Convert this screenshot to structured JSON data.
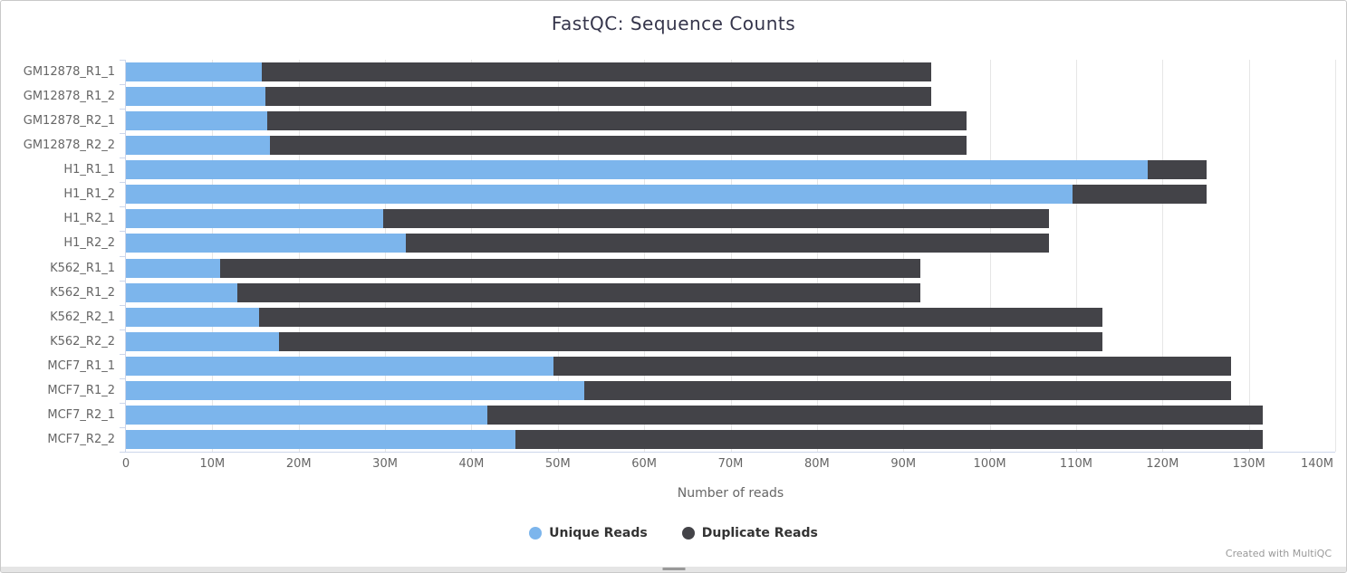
{
  "header": {
    "title": "FastQC: Sequence Counts"
  },
  "chart_data": {
    "type": "bar",
    "orientation": "horizontal_stacked",
    "title": "FastQC: Sequence Counts",
    "xlabel": "Number of reads",
    "ylabel": "",
    "xlim": [
      0,
      140
    ],
    "x_unit": "millions",
    "grid": "vertical",
    "legend_position": "bottom",
    "categories": [
      "GM12878_R1_1",
      "GM12878_R1_2",
      "GM12878_R2_1",
      "GM12878_R2_2",
      "H1_R1_1",
      "H1_R1_2",
      "H1_R2_1",
      "H1_R2_2",
      "K562_R1_1",
      "K562_R1_2",
      "K562_R2_1",
      "K562_R2_2",
      "MCF7_R1_1",
      "MCF7_R1_2",
      "MCF7_R2_1",
      "MCF7_R2_2"
    ],
    "series": [
      {
        "name": "Unique Reads",
        "color": "#7cb5ec",
        "values": [
          15.7,
          16.1,
          16.4,
          16.7,
          118.3,
          109.6,
          29.8,
          32.4,
          10.9,
          12.9,
          15.4,
          17.7,
          49.5,
          53.1,
          41.8,
          45.1
        ]
      },
      {
        "name": "Duplicate Reads",
        "color": "#434348",
        "values": [
          77.5,
          77.1,
          80.9,
          80.6,
          6.8,
          15.5,
          77.1,
          74.5,
          81.1,
          79.1,
          97.7,
          95.4,
          78.4,
          74.8,
          89.8,
          86.5
        ]
      }
    ],
    "xticks": [
      {
        "value": 0,
        "label": "0"
      },
      {
        "value": 10,
        "label": "10M"
      },
      {
        "value": 20,
        "label": "20M"
      },
      {
        "value": 30,
        "label": "30M"
      },
      {
        "value": 40,
        "label": "40M"
      },
      {
        "value": 50,
        "label": "50M"
      },
      {
        "value": 60,
        "label": "60M"
      },
      {
        "value": 70,
        "label": "70M"
      },
      {
        "value": 80,
        "label": "80M"
      },
      {
        "value": 90,
        "label": "90M"
      },
      {
        "value": 100,
        "label": "100M"
      },
      {
        "value": 110,
        "label": "110M"
      },
      {
        "value": 120,
        "label": "120M"
      },
      {
        "value": 130,
        "label": "130M"
      },
      {
        "value": 140,
        "label": "140M"
      }
    ]
  },
  "colors": {
    "gridline": "#e6e6e6",
    "axis_line": "#ccd6eb",
    "axis_text": "#666666",
    "title_text": "#35354b",
    "legend_text": "#333333"
  },
  "footer": {
    "credit": "Created with MultiQC"
  }
}
